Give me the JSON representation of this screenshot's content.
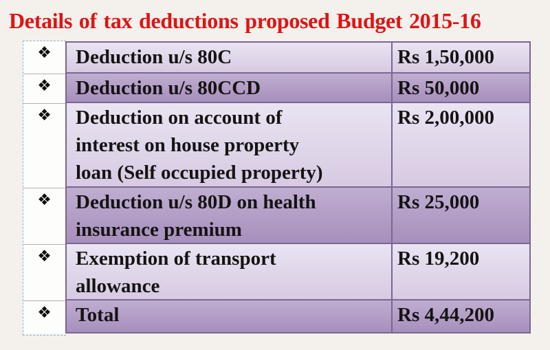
{
  "title": {
    "text": "Details of tax deductions proposed Budget 2015-16"
  },
  "table": {
    "bullet_icon": "❖",
    "rows": [
      {
        "label": "Deduction u/s 80C",
        "amount": "Rs 1,50,000"
      },
      {
        "label": "Deduction u/s 80CCD",
        "amount": "Rs 50,000"
      },
      {
        "label": "Deduction on account of\ninterest on house property\nloan (Self occupied property)",
        "amount": "Rs 2,00,000"
      },
      {
        "label": "Deduction u/s 80D on health\ninsurance premium",
        "amount": "Rs 25,000"
      },
      {
        "label": "Exemption of transport\nallowance",
        "amount": "Rs 19,200"
      },
      {
        "label": "Total",
        "amount": "Rs 4,44,200"
      }
    ]
  },
  "colors": {
    "title_red": "#e01414",
    "row_light": "#ddd2e6",
    "row_dark": "#b3a0c7",
    "table_border_purple": "#7b6593",
    "bullet_cell_bg": "#fdfdfc",
    "selection_dash_blue": "#8fb3cb",
    "page_background": "#f4f1ec"
  }
}
